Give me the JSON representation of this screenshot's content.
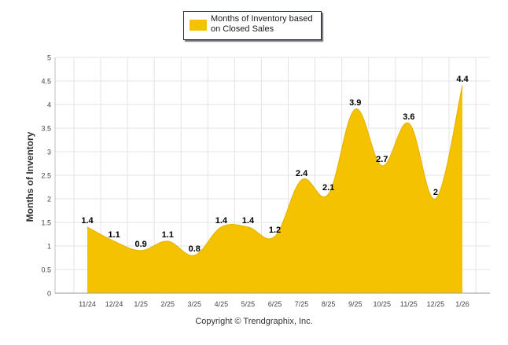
{
  "chart_data": {
    "type": "area",
    "categories": [
      "11/24",
      "12/24",
      "1/25",
      "2/25",
      "3/25",
      "4/25",
      "5/25",
      "6/25",
      "7/25",
      "8/25",
      "9/25",
      "10/25",
      "11/25",
      "12/25",
      "1/26"
    ],
    "series": [
      {
        "name": "Months of Inventory based on Closed Sales",
        "values": [
          1.4,
          1.1,
          0.9,
          1.1,
          0.8,
          1.4,
          1.4,
          1.2,
          2.4,
          2.1,
          3.9,
          2.7,
          3.6,
          2,
          4.4
        ],
        "labels": [
          "1.4",
          "1.1",
          "0.9",
          "1.1",
          "0.8",
          "1.4",
          "1.4",
          "1.2",
          "2.4",
          "2.1",
          "3.9",
          "2.7",
          "3.6",
          "2",
          "4.4"
        ]
      }
    ],
    "ylabel": "Months of Inventory",
    "xlabel": "",
    "ylim": [
      0,
      5
    ],
    "yticks": [
      "0",
      "0.5",
      "1",
      "1.5",
      "2",
      "2.5",
      "3",
      "3.5",
      "4",
      "4.5",
      "5"
    ],
    "grid": true,
    "legend_position": "top-center",
    "colors": {
      "fill": "#F5C200",
      "grid": "#e3e3e3",
      "axis": "#bfbfbf",
      "label": "#000000"
    }
  },
  "legend": {
    "label": "Months of Inventory based on Closed Sales"
  },
  "footer": {
    "copyright": "Copyright © Trendgraphix, Inc."
  }
}
